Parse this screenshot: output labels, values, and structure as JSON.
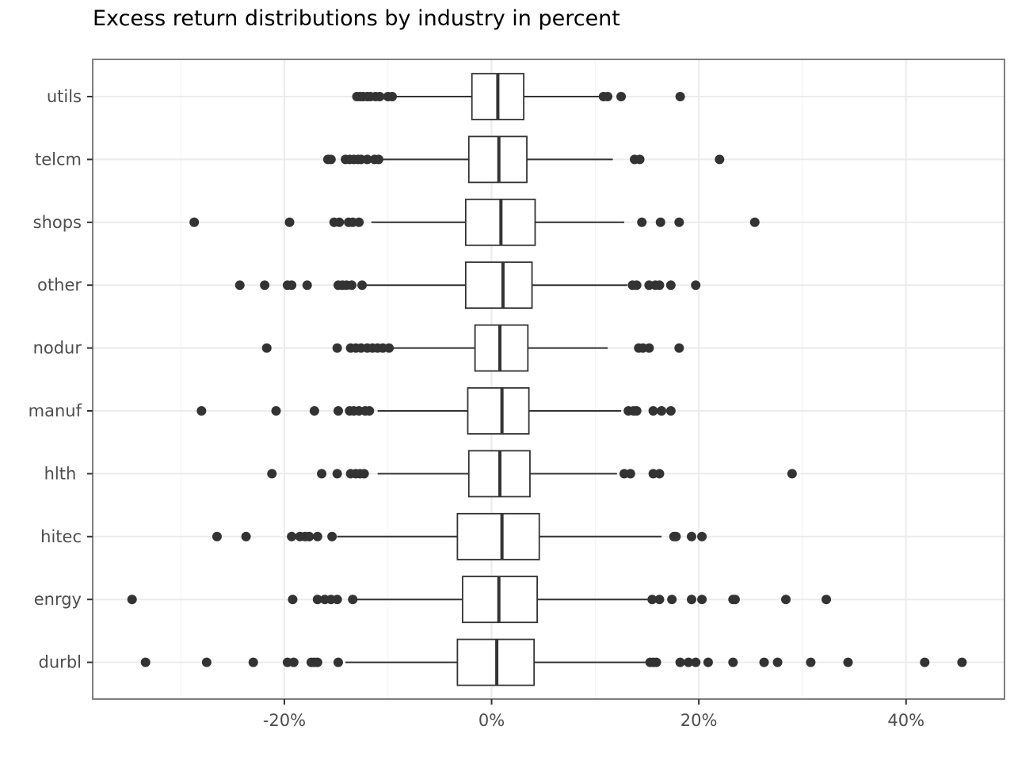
{
  "chart_data": {
    "type": "boxplot",
    "title": "Excess return distributions by industry in percent",
    "xlabel": "",
    "ylabel": "",
    "x_ticks": [
      {
        "value": -0.2,
        "label": "-20%"
      },
      {
        "value": 0.0,
        "label": "0%"
      },
      {
        "value": 0.2,
        "label": "20%"
      },
      {
        "value": 0.4,
        "label": "40%"
      }
    ],
    "xlim": [
      -0.385,
      0.495
    ],
    "grid": true,
    "categories": [
      "utils",
      "telcm",
      "shops",
      "other",
      "nodur",
      "manuf",
      "hlth ",
      "hitec",
      "enrgy",
      "durbl"
    ],
    "series": [
      {
        "category": "utils",
        "q1": -0.019,
        "median": 0.006,
        "q3": 0.031,
        "whisker_low": -0.094,
        "whisker_high": 0.105,
        "outliers": [
          -0.13,
          -0.127,
          -0.124,
          -0.12,
          -0.117,
          -0.112,
          -0.108,
          -0.1,
          -0.096,
          0.108,
          0.112,
          0.125,
          0.182
        ]
      },
      {
        "category": "telcm",
        "q1": -0.022,
        "median": 0.007,
        "q3": 0.034,
        "whisker_low": -0.106,
        "whisker_high": 0.117,
        "outliers": [
          -0.158,
          -0.155,
          -0.141,
          -0.137,
          -0.133,
          -0.129,
          -0.126,
          -0.12,
          -0.113,
          -0.109,
          0.138,
          0.143,
          0.22
        ]
      },
      {
        "category": "shops",
        "q1": -0.025,
        "median": 0.009,
        "q3": 0.042,
        "whisker_low": -0.116,
        "whisker_high": 0.128,
        "outliers": [
          -0.287,
          -0.195,
          -0.152,
          -0.147,
          -0.138,
          -0.134,
          -0.128,
          0.145,
          0.163,
          0.181,
          0.254
        ]
      },
      {
        "category": "other",
        "q1": -0.025,
        "median": 0.011,
        "q3": 0.039,
        "whisker_low": -0.122,
        "whisker_high": 0.131,
        "outliers": [
          -0.243,
          -0.219,
          -0.197,
          -0.193,
          -0.178,
          -0.148,
          -0.144,
          -0.14,
          -0.135,
          -0.125,
          0.136,
          0.14,
          0.152,
          0.158,
          0.162,
          0.173,
          0.197
        ]
      },
      {
        "category": "nodur",
        "q1": -0.016,
        "median": 0.008,
        "q3": 0.035,
        "whisker_low": -0.097,
        "whisker_high": 0.112,
        "outliers": [
          -0.217,
          -0.149,
          -0.136,
          -0.131,
          -0.126,
          -0.12,
          -0.115,
          -0.11,
          -0.105,
          -0.099,
          0.142,
          0.146,
          0.152,
          0.181
        ]
      },
      {
        "category": "manuf",
        "q1": -0.023,
        "median": 0.01,
        "q3": 0.036,
        "whisker_low": -0.11,
        "whisker_high": 0.125,
        "outliers": [
          -0.28,
          -0.208,
          -0.171,
          -0.148,
          -0.137,
          -0.133,
          -0.128,
          -0.122,
          -0.118,
          0.132,
          0.137,
          0.14,
          0.156,
          0.164,
          0.173
        ]
      },
      {
        "category": "hlth ",
        "q1": -0.022,
        "median": 0.008,
        "q3": 0.037,
        "whisker_low": -0.11,
        "whisker_high": 0.121,
        "outliers": [
          -0.212,
          -0.164,
          -0.149,
          -0.136,
          -0.131,
          -0.127,
          -0.123,
          0.128,
          0.134,
          0.156,
          0.162,
          0.29
        ]
      },
      {
        "category": "hitec",
        "q1": -0.033,
        "median": 0.01,
        "q3": 0.046,
        "whisker_low": -0.149,
        "whisker_high": 0.164,
        "outliers": [
          -0.265,
          -0.237,
          -0.193,
          -0.185,
          -0.18,
          -0.176,
          -0.168,
          -0.154,
          0.176,
          0.178,
          0.193,
          0.203
        ]
      },
      {
        "category": "enrgy",
        "q1": -0.028,
        "median": 0.007,
        "q3": 0.044,
        "whisker_low": -0.134,
        "whisker_high": 0.153,
        "outliers": [
          -0.347,
          -0.192,
          -0.168,
          -0.161,
          -0.155,
          -0.149,
          -0.134,
          0.155,
          0.162,
          0.174,
          0.193,
          0.203,
          0.233,
          0.235,
          0.284,
          0.323
        ]
      },
      {
        "category": "durbl",
        "q1": -0.033,
        "median": 0.005,
        "q3": 0.041,
        "whisker_low": -0.141,
        "whisker_high": 0.151,
        "outliers": [
          -0.334,
          -0.275,
          -0.23,
          -0.197,
          -0.191,
          -0.174,
          -0.171,
          -0.168,
          -0.148,
          0.153,
          0.156,
          0.159,
          0.182,
          0.19,
          0.197,
          0.209,
          0.233,
          0.263,
          0.276,
          0.308,
          0.344,
          0.418,
          0.454
        ]
      }
    ]
  },
  "colors": {
    "box_line": "#333333",
    "grid_major": "#ebebeb",
    "grid_minor": "#f3f3f3",
    "panel_border": "#7f7f7f",
    "tick_text": "#4d4d4d"
  }
}
